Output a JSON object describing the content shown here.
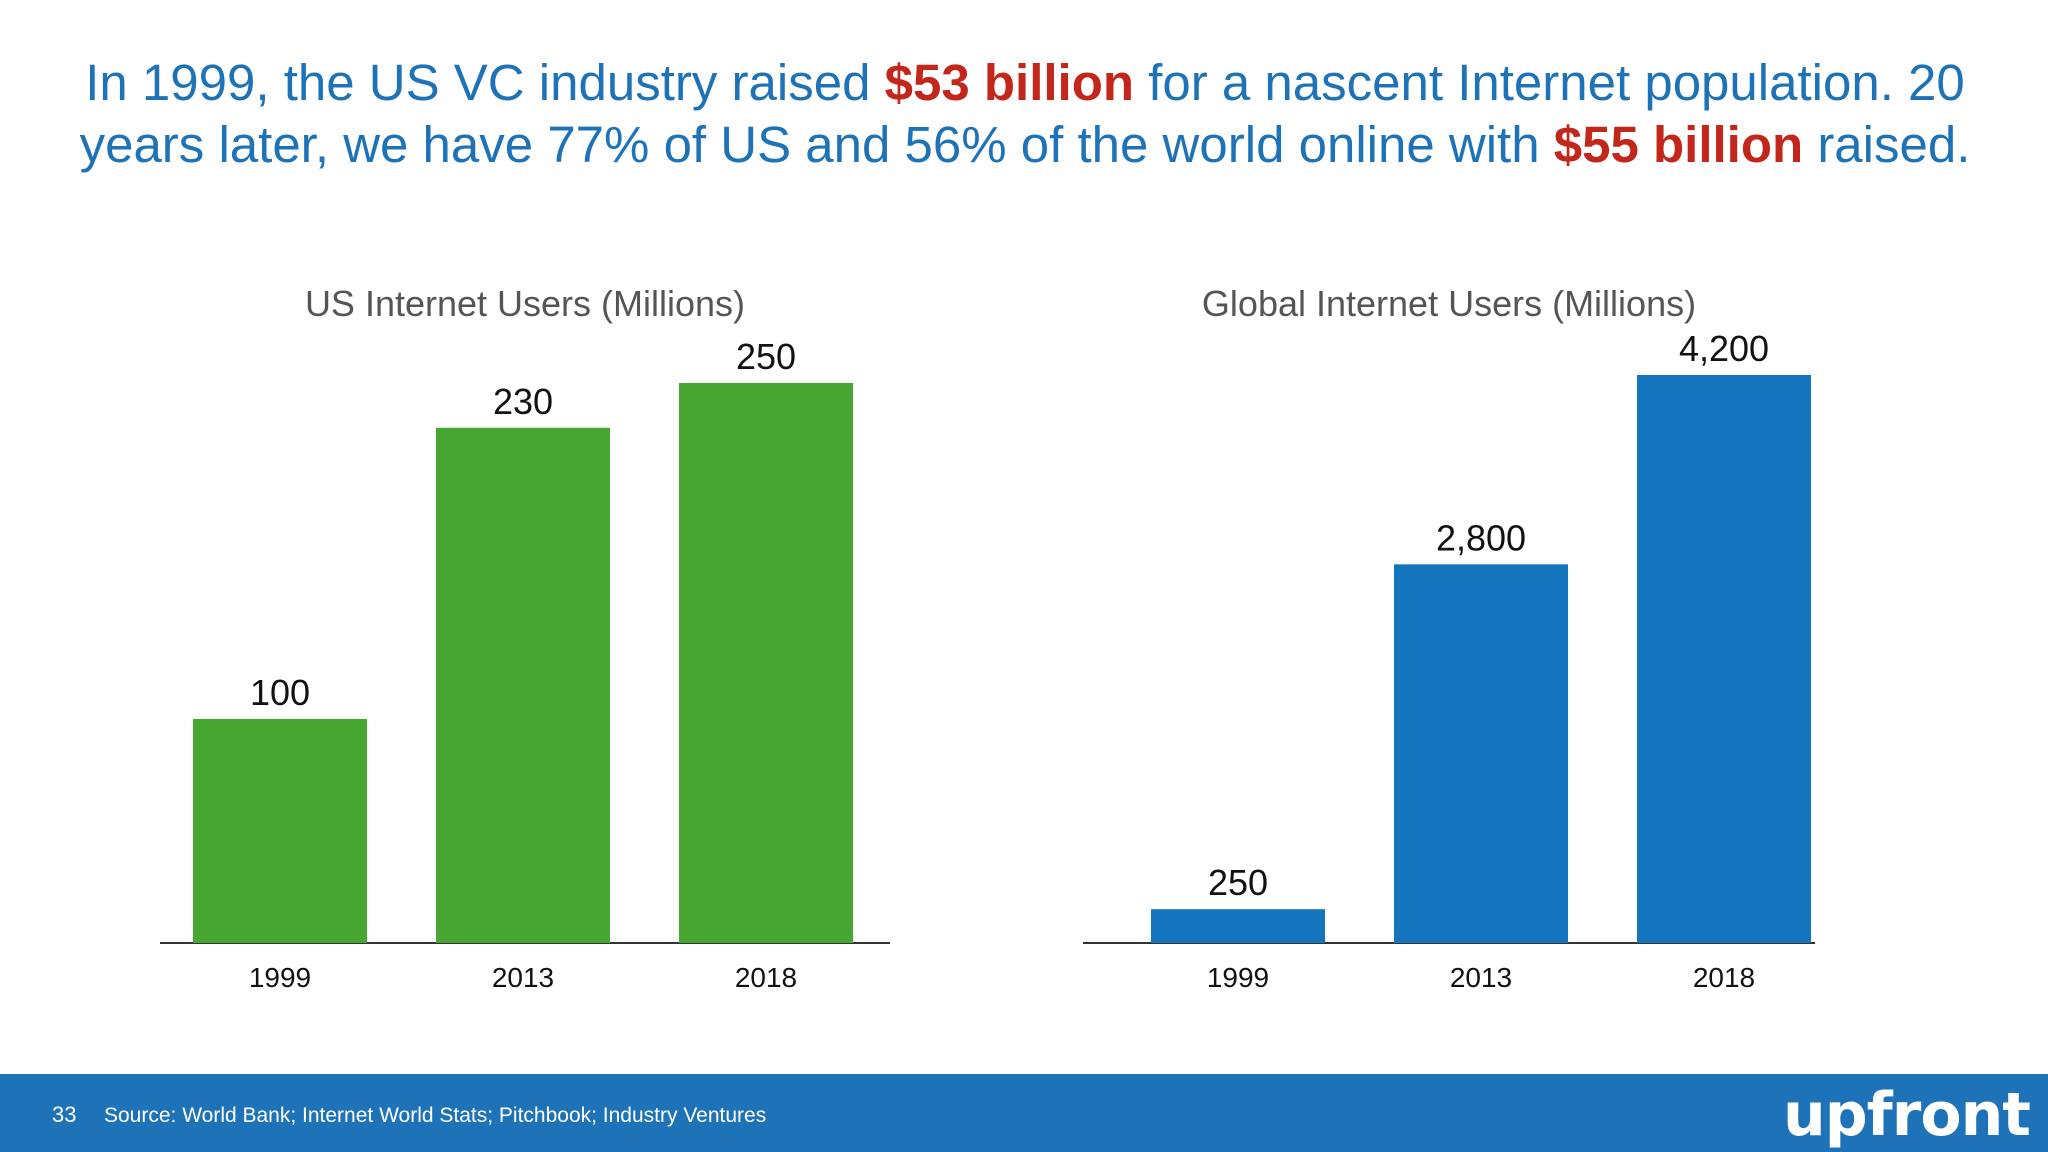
{
  "headline": {
    "p1": "In 1999, the US VC industry raised ",
    "h1": "$53 billion",
    "p2": " for a nascent Internet population. 20 years later, we have 77% of US and 56% of the world online with ",
    "h2": "$55 billion",
    "p3": " raised."
  },
  "colors": {
    "headline": "#1e73b8",
    "highlight": "#c3261b",
    "footer": "#1e73b8"
  },
  "chart_data": [
    {
      "type": "bar",
      "title": "US Internet Users (Millions)",
      "categories": [
        "1999",
        "2013",
        "2018"
      ],
      "values": [
        100,
        230,
        250
      ],
      "value_labels": [
        "100",
        "230",
        "250"
      ],
      "color": "#48a633",
      "ylim": [
        0,
        250
      ],
      "grid": false
    },
    {
      "type": "bar",
      "title": "Global Internet Users (Millions)",
      "categories": [
        "1999",
        "2013",
        "2018"
      ],
      "values": [
        250,
        2800,
        4200
      ],
      "value_labels": [
        "250",
        "2,800",
        "4,200"
      ],
      "color": "#1474bd",
      "ylim": [
        0,
        4200
      ],
      "grid": false
    }
  ],
  "footer": {
    "page_number": "33",
    "source": "Source: World Bank; Internet World Stats; Pitchbook; Industry Ventures",
    "logo": "upfront"
  }
}
